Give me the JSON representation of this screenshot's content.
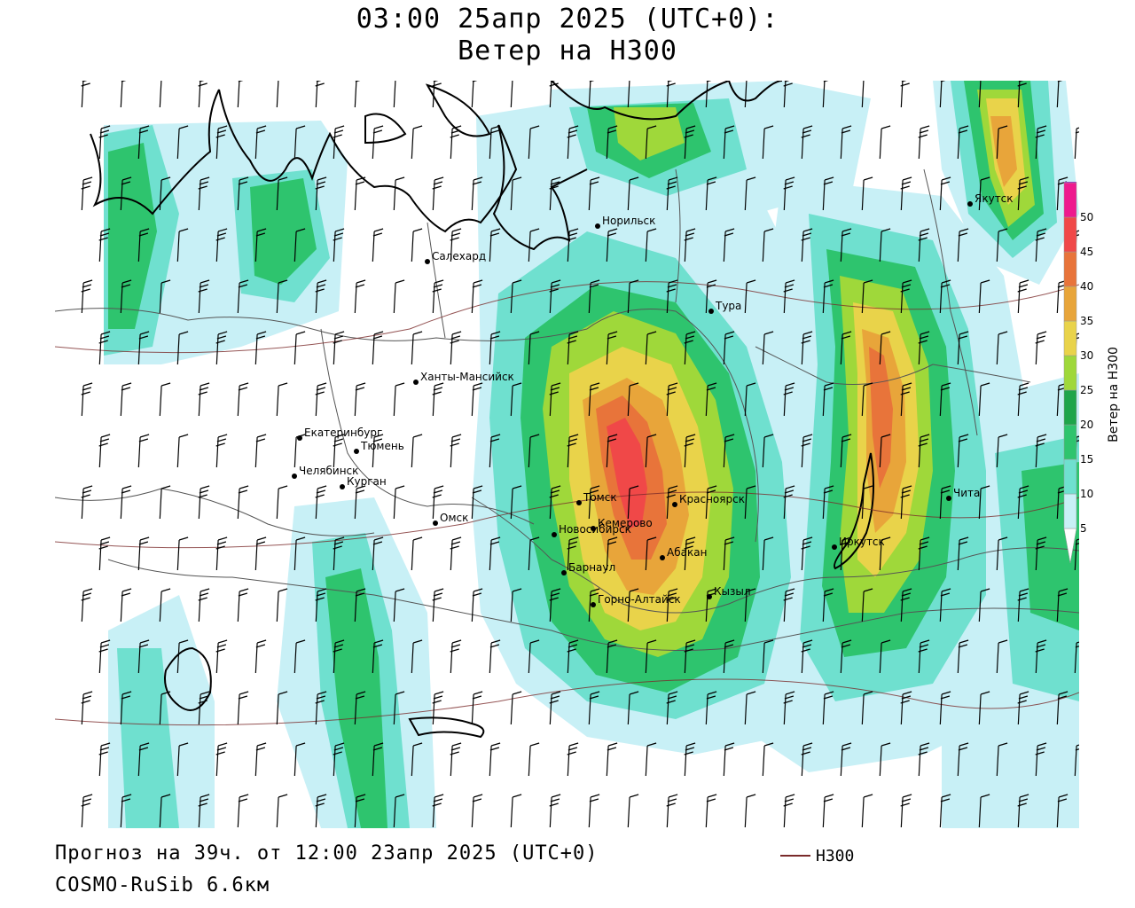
{
  "title": {
    "line1": "03:00 25апр 2025 (UTC+0):",
    "line2": "Ветер на H300"
  },
  "footer": {
    "forecast": "Прогноз на 39ч. от 12:00 23апр 2025 (UTC+0)",
    "model": "COSMO-RuSib 6.6км"
  },
  "legend": {
    "contour_label": "H300",
    "contour_color": "#7a2a2a"
  },
  "colorbar": {
    "title": "Ветер на H300",
    "ticks": [
      "5",
      "10",
      "15",
      "20",
      "25",
      "30",
      "35",
      "40",
      "45",
      "50"
    ],
    "colors": [
      "#ffffff",
      "#c8f0f6",
      "#6fe0cf",
      "#2ec46e",
      "#1ea54a",
      "#9fd83a",
      "#e9d34a",
      "#e8a53a",
      "#e8743a",
      "#f04848",
      "#ee1a8e",
      "#9a25c8"
    ]
  },
  "cities": [
    {
      "name": "Салехард"
    },
    {
      "name": "Норильск"
    },
    {
      "name": "Якутск"
    },
    {
      "name": "Тура"
    },
    {
      "name": "Ханты-Мансийск"
    },
    {
      "name": "Екатеринбург"
    },
    {
      "name": "Тюмень"
    },
    {
      "name": "Челябинск"
    },
    {
      "name": "Курган"
    },
    {
      "name": "Омск"
    },
    {
      "name": "Томск"
    },
    {
      "name": "Новосибирск"
    },
    {
      "name": "Кемерово"
    },
    {
      "name": "Красноярск"
    },
    {
      "name": "Абакан"
    },
    {
      "name": "Барнаул"
    },
    {
      "name": "Горно-Алтайск"
    },
    {
      "name": "Кызыл"
    },
    {
      "name": "Иркутск"
    },
    {
      "name": "Чита"
    }
  ]
}
